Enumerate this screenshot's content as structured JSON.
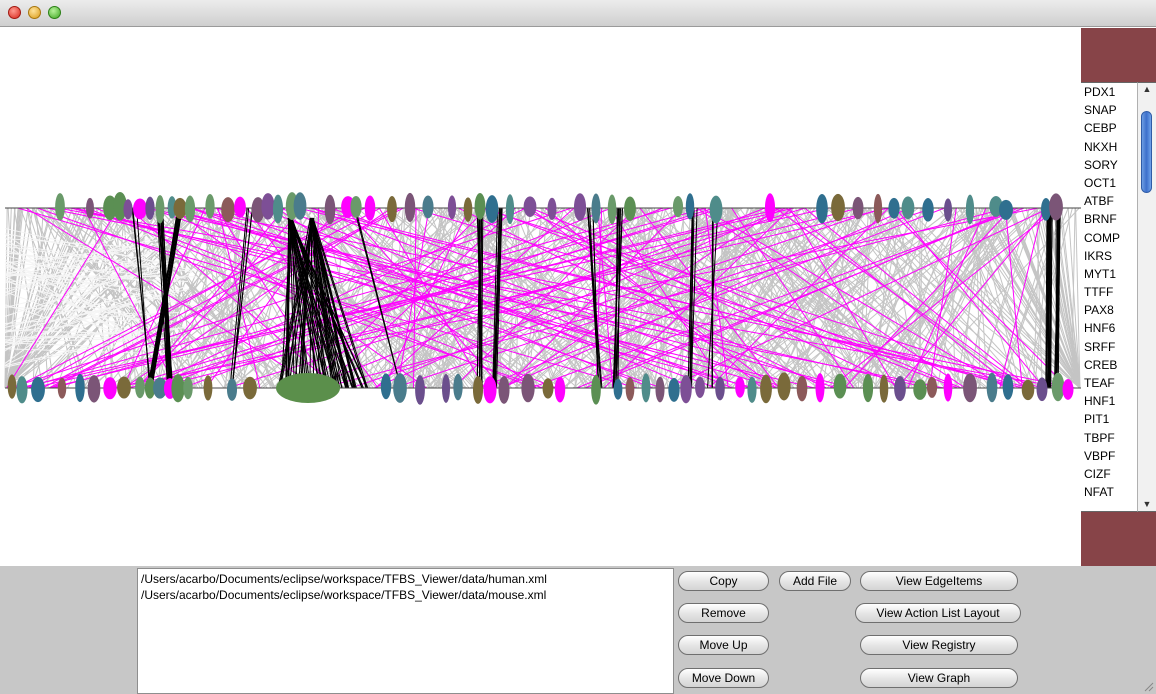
{
  "window": {
    "controls": [
      "close",
      "minimize",
      "zoom"
    ]
  },
  "viz": {
    "colors": {
      "background": "#ffffff",
      "edge_grey": "#c4c4c4",
      "edge_magenta": "#ff00ff",
      "edge_black": "#000000",
      "node_palette": [
        "#7d4f96",
        "#4f8c8a",
        "#6b4f8d",
        "#7b5577",
        "#5b8f53",
        "#4a7c8c",
        "#8c5a5a",
        "#ff00ff",
        "#2f6f8f",
        "#7a6a3a",
        "#6a9a6a"
      ]
    }
  },
  "tf_list": {
    "items": [
      "PDX1",
      "SNAP",
      "CEBP",
      "NKXH",
      "SORY",
      "OCT1",
      "ATBF",
      "BRNF",
      "COMP",
      "IKRS",
      "MYT1",
      "TTFF",
      "PAX8",
      "HNF6",
      "SRFF",
      "CREB",
      "TEAF",
      "HNF1",
      "PIT1",
      "TBPF",
      "VBPF",
      "CIZF",
      "NFAT"
    ],
    "accent": "#874448"
  },
  "files": [
    "/Users/acarbo/Documents/eclipse/workspace/TFBS_Viewer/data/human.xml",
    "/Users/acarbo/Documents/eclipse/workspace/TFBS_Viewer/data/mouse.xml"
  ],
  "buttons": {
    "copy": "Copy",
    "add_file": "Add File",
    "view_edgeitems": "View EdgeItems",
    "remove": "Remove",
    "view_action_list_layout": "View Action List Layout",
    "move_up": "Move Up",
    "view_registry": "View Registry",
    "move_down": "Move Down",
    "view_graph": "View Graph"
  }
}
